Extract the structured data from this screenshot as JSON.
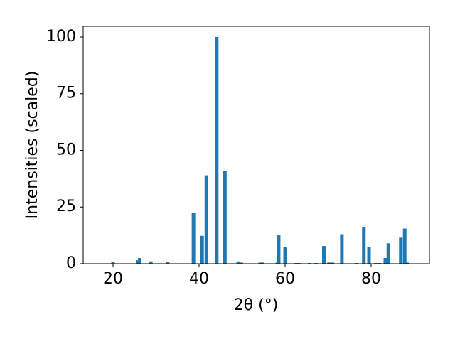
{
  "chart_data": {
    "type": "bar",
    "x_label": "2θ (°)",
    "y_label": "Intensities (scaled)",
    "x": [
      20.0,
      25.8,
      26.2,
      28.8,
      32.7,
      38.7,
      40.7,
      41.7,
      44.1,
      46.0,
      49.1,
      49.8,
      54.2,
      54.8,
      58.2,
      58.5,
      60.0,
      62.6,
      63.2,
      65.7,
      67.2,
      69.0,
      70.2,
      71.0,
      73.2,
      76.6,
      78.3,
      79.5,
      81.1,
      81.9,
      83.3,
      84.0,
      86.9,
      87.8,
      88.5
    ],
    "values": [
      0.8,
      1.5,
      2.5,
      1.0,
      0.8,
      22.5,
      12.3,
      39,
      100,
      41,
      1.0,
      0.5,
      0.5,
      0.5,
      0.5,
      12.5,
      7.2,
      0.3,
      0.3,
      0.3,
      0.3,
      7.8,
      0.5,
      0.5,
      13,
      0.3,
      16.3,
      7.3,
      0.3,
      0.3,
      2.5,
      9,
      11.5,
      15.5,
      0.5
    ],
    "color": "#1f77b4",
    "xlim": [
      13.06,
      93.55
    ],
    "xticks": [
      20,
      40,
      60,
      80
    ],
    "ylim": [
      0,
      104.7
    ],
    "yticks": [
      0,
      25,
      50,
      75,
      100
    ]
  }
}
